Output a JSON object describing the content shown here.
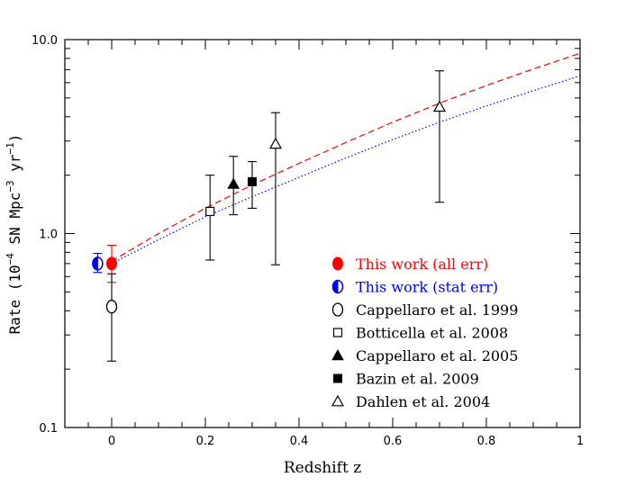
{
  "chart_data": {
    "type": "scatter",
    "xlabel": "Redshift z",
    "ylabel_parts": [
      "Rate (10",
      "−4",
      " SN Mpc",
      "−3",
      " yr",
      "−1",
      ")"
    ],
    "xlim": [
      -0.1,
      1.0
    ],
    "ylim": [
      0.1,
      10.0
    ],
    "yscale": "log",
    "x_ticks": [
      0,
      0.2,
      0.4,
      0.6,
      0.8,
      1
    ],
    "x_tick_labels": [
      "0",
      "0.2",
      "0.4",
      "0.6",
      "0.8",
      "1"
    ],
    "y_ticks": [
      0.1,
      1.0,
      10.0
    ],
    "y_tick_labels": [
      "0.1",
      "1.0",
      "10.0"
    ],
    "colors": {
      "red": "#ff0000",
      "blue": "#0000ff",
      "black": "#000000"
    },
    "series": [
      {
        "name": "This work (all err)",
        "marker": "filled-circle",
        "color": "#ff0000",
        "points": [
          {
            "x": 0.0,
            "y": 0.7,
            "ylo": 0.56,
            "yhi": 0.87
          }
        ]
      },
      {
        "name": "This work (stat err)",
        "marker": "half-circle",
        "color": "#0000ff",
        "points": [
          {
            "x": -0.03,
            "y": 0.7,
            "ylo": 0.63,
            "yhi": 0.79
          }
        ]
      },
      {
        "name": "Cappellaro et al. 1999",
        "marker": "open-circle",
        "color": "#000000",
        "points": [
          {
            "x": 0.0,
            "y": 0.42,
            "ylo": 0.22,
            "yhi": 0.62
          }
        ]
      },
      {
        "name": "Botticella et al. 2008",
        "marker": "open-square",
        "color": "#000000",
        "points": [
          {
            "x": 0.21,
            "y": 1.3,
            "ylo": 0.73,
            "yhi": 2.0
          }
        ]
      },
      {
        "name": "Cappellaro et al. 2005",
        "marker": "filled-triangle",
        "color": "#000000",
        "points": [
          {
            "x": 0.26,
            "y": 1.8,
            "ylo": 1.25,
            "yhi": 2.5
          }
        ]
      },
      {
        "name": "Bazin et al. 2009",
        "marker": "filled-square",
        "color": "#000000",
        "points": [
          {
            "x": 0.3,
            "y": 1.85,
            "ylo": 1.35,
            "yhi": 2.35
          }
        ]
      },
      {
        "name": "Dahlen et al. 2004",
        "marker": "open-triangle",
        "color": "#000000",
        "points": [
          {
            "x": 0.35,
            "y": 2.9,
            "ylo": 0.69,
            "yhi": 4.2
          },
          {
            "x": 0.7,
            "y": 4.5,
            "ylo": 1.45,
            "yhi": 6.9
          }
        ]
      }
    ],
    "curves": [
      {
        "style": "dashed",
        "color": "#ff0000",
        "x": [
          0.0,
          0.1,
          0.2,
          0.3,
          0.4,
          0.5,
          0.6,
          0.7,
          0.8,
          0.9,
          1.0
        ],
        "y": [
          0.72,
          1.0,
          1.35,
          1.78,
          2.3,
          2.95,
          3.75,
          4.7,
          5.8,
          7.05,
          8.5
        ]
      },
      {
        "style": "dotted",
        "color": "#0000ff",
        "x": [
          0.0,
          0.1,
          0.2,
          0.3,
          0.4,
          0.5,
          0.6,
          0.7,
          0.8,
          0.9,
          1.0
        ],
        "y": [
          0.7,
          0.93,
          1.22,
          1.55,
          1.95,
          2.45,
          3.05,
          3.75,
          4.55,
          5.45,
          6.5
        ]
      }
    ],
    "legend_position": "lower-right",
    "grid": false
  }
}
